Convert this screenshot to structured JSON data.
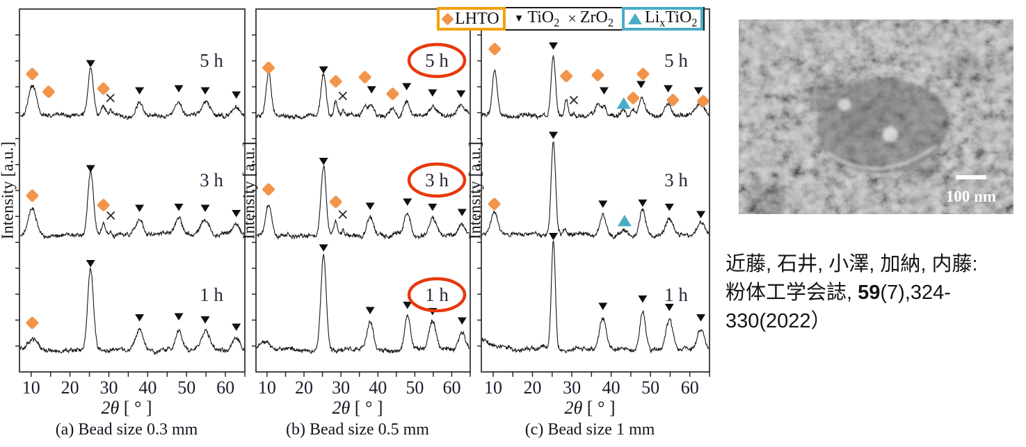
{
  "colors": {
    "lhto": "#F2954A",
    "lhto_box_border": "#F2A20D",
    "lixtio2": "#4BACC6",
    "red_circle": "#E8380D",
    "trace": "#161616",
    "axis": "#1b1b1b"
  },
  "legend": {
    "lhto": "LHTO",
    "cross": "×",
    "tio2": {
      "pre": "TiO",
      "sub": "2"
    },
    "zro2": {
      "pre": "ZrO",
      "sub": "2"
    },
    "lix": {
      "p1": "Li",
      "s1": "x",
      "p2": "TiO",
      "s2": "2"
    }
  },
  "sem": {
    "scale_label": "100 nm"
  },
  "citation": {
    "line1": "近藤, 石井, 小澤, 加納, 内藤:",
    "line2_pre": "粉体工学会誌, ",
    "volume": "59",
    "line2_post": "(7),324-",
    "line3": "330(2022）"
  },
  "chart_data": [
    {
      "type": "line",
      "id": "a",
      "caption": "(a)  Bead size 0.3 mm",
      "xlabel_var": "2θ",
      "xlabel_unit": " [ ° ]",
      "ylabel": "Intensity [a.u.]",
      "xlim": [
        7,
        65
      ],
      "xticks": [
        10,
        20,
        30,
        40,
        50,
        60
      ],
      "series": [
        {
          "name": "1 h",
          "circled": false,
          "peaks": [
            [
              10.3,
              0.1,
              3.0
            ],
            [
              25.3,
              0.78,
              1.7
            ],
            [
              37.9,
              0.2,
              2.2
            ],
            [
              48,
              0.21,
              2.0
            ],
            [
              54.8,
              0.18,
              2.6
            ],
            [
              62.8,
              0.11,
              2.2
            ]
          ],
          "markers": [
            [
              "lhto",
              10.3,
              0.27
            ],
            [
              "tio2",
              25.3,
              0.84
            ],
            [
              "tio2",
              37.9,
              0.32
            ],
            [
              "tio2",
              48,
              0.33
            ],
            [
              "tio2",
              54.8,
              0.3
            ],
            [
              "tio2",
              62.8,
              0.23
            ]
          ]
        },
        {
          "name": "3 h",
          "circled": false,
          "peaks": [
            [
              10.3,
              0.27,
              2.4
            ],
            [
              25.3,
              0.6,
              1.7
            ],
            [
              28.6,
              0.1,
              1.2
            ],
            [
              30.5,
              0.04,
              0.7
            ],
            [
              37.9,
              0.15,
              2.2
            ],
            [
              48,
              0.16,
              2.0
            ],
            [
              54.8,
              0.15,
              2.6
            ],
            [
              62.8,
              0.1,
              2.2
            ]
          ],
          "markers": [
            [
              "lhto",
              10.3,
              0.39
            ],
            [
              "tio2",
              25.3,
              0.65
            ],
            [
              "lhto",
              28.6,
              0.3
            ],
            [
              "zro2",
              30.5,
              0.2
            ],
            [
              "tio2",
              37.9,
              0.27
            ],
            [
              "tio2",
              48,
              0.28
            ],
            [
              "tio2",
              54.8,
              0.27
            ],
            [
              "tio2",
              62.8,
              0.22
            ]
          ]
        },
        {
          "name": "5 h",
          "circled": false,
          "peaks": [
            [
              10.3,
              0.28,
              2.4
            ],
            [
              25.3,
              0.46,
              1.6
            ],
            [
              28.6,
              0.08,
              1.2
            ],
            [
              30.4,
              0.04,
              0.7
            ],
            [
              37.9,
              0.13,
              2.2
            ],
            [
              48,
              0.13,
              2.0
            ],
            [
              54.8,
              0.13,
              2.6
            ],
            [
              62.8,
              0.09,
              2.2
            ]
          ],
          "markers": [
            [
              "lhto",
              10.3,
              0.41
            ],
            [
              "lhto",
              14.5,
              0.24
            ],
            [
              "tio2",
              25.3,
              0.51
            ],
            [
              "lhto",
              28.6,
              0.27
            ],
            [
              "zro2",
              30.4,
              0.18
            ],
            [
              "tio2",
              37.9,
              0.25
            ],
            [
              "tio2",
              48,
              0.27
            ],
            [
              "tio2",
              54.8,
              0.25
            ],
            [
              "tio2",
              62.8,
              0.21
            ]
          ]
        }
      ]
    },
    {
      "type": "line",
      "id": "b",
      "caption": "(b)  Bead size 0.5 mm",
      "xlabel_var": "2θ",
      "xlabel_unit": " [ ° ]",
      "ylabel": "Intensity [a.u.]",
      "xlim": [
        7,
        65
      ],
      "xticks": [
        10,
        20,
        30,
        40,
        50,
        60
      ],
      "series": [
        {
          "name": "1 h",
          "circled": true,
          "peaks": [
            [
              9.5,
              0.06,
              4.0
            ],
            [
              25.3,
              0.93,
              1.7
            ],
            [
              37.9,
              0.27,
              2.0
            ],
            [
              48,
              0.32,
              1.8
            ],
            [
              54.8,
              0.26,
              2.2
            ],
            [
              62.8,
              0.17,
              2.2
            ]
          ],
          "markers": [
            [
              "tio2",
              25.3,
              0.99
            ],
            [
              "tio2",
              37.9,
              0.39
            ],
            [
              "tio2",
              48,
              0.44
            ],
            [
              "tio2",
              54.8,
              0.38
            ],
            [
              "tio2",
              62.8,
              0.29
            ]
          ]
        },
        {
          "name": "3 h",
          "circled": true,
          "peaks": [
            [
              10.4,
              0.3,
              1.9
            ],
            [
              25.3,
              0.66,
              1.6
            ],
            [
              28.6,
              0.12,
              1.1
            ],
            [
              30.5,
              0.04,
              0.7
            ],
            [
              37.9,
              0.17,
              2.1
            ],
            [
              48,
              0.21,
              1.9
            ],
            [
              54.8,
              0.16,
              2.3
            ],
            [
              62.8,
              0.11,
              2.2
            ]
          ],
          "markers": [
            [
              "lhto",
              10.4,
              0.45
            ],
            [
              "tio2",
              25.3,
              0.72
            ],
            [
              "lhto",
              28.6,
              0.33
            ],
            [
              "zro2",
              30.5,
              0.21
            ],
            [
              "tio2",
              37.9,
              0.29
            ],
            [
              "tio2",
              48,
              0.33
            ],
            [
              "tio2",
              54.8,
              0.28
            ],
            [
              "tio2",
              62.8,
              0.23
            ]
          ]
        },
        {
          "name": "5 h",
          "circled": true,
          "peaks": [
            [
              10.4,
              0.42,
              1.6
            ],
            [
              25.3,
              0.4,
              1.6
            ],
            [
              28.6,
              0.13,
              1.1
            ],
            [
              30.5,
              0.05,
              0.8
            ],
            [
              36.5,
              0.09,
              1.4
            ],
            [
              38.2,
              0.1,
              1.6
            ],
            [
              44,
              0.07,
              1.6
            ],
            [
              47.8,
              0.14,
              1.8
            ],
            [
              54.8,
              0.11,
              2.2
            ],
            [
              62.5,
              0.1,
              2.4
            ]
          ],
          "markers": [
            [
              "lhto",
              10.4,
              0.47
            ],
            [
              "tio2",
              25.3,
              0.45
            ],
            [
              "lhto",
              28.6,
              0.34
            ],
            [
              "zro2",
              30.5,
              0.2
            ],
            [
              "lhto",
              36.5,
              0.38
            ],
            [
              "tio2",
              38.3,
              0.26
            ],
            [
              "lhto",
              44,
              0.22
            ],
            [
              "tio2",
              47.8,
              0.29
            ],
            [
              "tio2",
              54.8,
              0.23
            ],
            [
              "tio2",
              62.5,
              0.22
            ]
          ]
        }
      ]
    },
    {
      "type": "line",
      "id": "c",
      "caption": "(c)  Bead size 1 mm",
      "xlabel_var": "2θ",
      "xlabel_unit": " [ ° ]",
      "ylabel": "Intensity [a.u.]",
      "xlim": [
        7,
        65
      ],
      "xticks": [
        10,
        20,
        30,
        40,
        50,
        60
      ],
      "series": [
        {
          "name": "1 h",
          "circled": false,
          "slope": 0.1,
          "peaks": [
            [
              25.3,
              1.05,
              1.2
            ],
            [
              37.9,
              0.3,
              1.9
            ],
            [
              48,
              0.37,
              1.7
            ],
            [
              54.8,
              0.29,
              2.1
            ],
            [
              62.8,
              0.19,
              2.2
            ]
          ],
          "markers": [
            [
              "tio2",
              25.3,
              1.1
            ],
            [
              "tio2",
              37.9,
              0.43
            ],
            [
              "tio2",
              48,
              0.5
            ],
            [
              "tio2",
              54.8,
              0.42
            ],
            [
              "tio2",
              62.8,
              0.32
            ]
          ]
        },
        {
          "name": "3 h",
          "circled": false,
          "peaks": [
            [
              10.3,
              0.22,
              2.2
            ],
            [
              25.3,
              0.9,
              1.3
            ],
            [
              28.3,
              0.05,
              1.0
            ],
            [
              37.9,
              0.19,
              1.9
            ],
            [
              43.4,
              0.06,
              1.2
            ],
            [
              48,
              0.23,
              1.8
            ],
            [
              54.8,
              0.17,
              2.2
            ],
            [
              62.8,
              0.12,
              2.2
            ]
          ],
          "markers": [
            [
              "lhto",
              10.3,
              0.31
            ],
            [
              "tio2",
              25.3,
              0.97
            ],
            [
              "tio2",
              37.9,
              0.31
            ],
            [
              "lixtio2",
              43.4,
              0.15
            ],
            [
              "tio2",
              48,
              0.32
            ],
            [
              "tio2",
              54.8,
              0.28
            ],
            [
              "tio2",
              62.8,
              0.21
            ]
          ]
        },
        {
          "name": "5 h",
          "circled": false,
          "peaks": [
            [
              10.4,
              0.45,
              1.5
            ],
            [
              25.3,
              0.58,
              1.3
            ],
            [
              28.6,
              0.17,
              1.0
            ],
            [
              30.5,
              0.04,
              0.7
            ],
            [
              36.6,
              0.11,
              1.4
            ],
            [
              38.2,
              0.1,
              1.5
            ],
            [
              43.2,
              0.05,
              1.2
            ],
            [
              45.6,
              0.05,
              1.3
            ],
            [
              47.8,
              0.17,
              1.7
            ],
            [
              54.5,
              0.12,
              2.0
            ],
            [
              62.2,
              0.1,
              2.0
            ],
            [
              63.6,
              0.05,
              1.5
            ]
          ],
          "markers": [
            [
              "lhto",
              10.4,
              0.65
            ],
            [
              "tio2",
              25.3,
              0.68
            ],
            [
              "lhto",
              28.6,
              0.39
            ],
            [
              "zro2",
              30.5,
              0.16
            ],
            [
              "lhto",
              36.6,
              0.4
            ],
            [
              "tio2",
              38.2,
              0.25
            ],
            [
              "lixtio2",
              43.2,
              0.13
            ],
            [
              "lhto",
              45.6,
              0.18
            ],
            [
              "lhto",
              48.1,
              0.41
            ],
            [
              "tio2",
              47.6,
              0.31
            ],
            [
              "tio2",
              54.5,
              0.27
            ],
            [
              "lhto",
              55.7,
              0.16
            ],
            [
              "tio2",
              62.2,
              0.25
            ],
            [
              "lhto",
              63.4,
              0.15
            ]
          ]
        }
      ]
    }
  ]
}
